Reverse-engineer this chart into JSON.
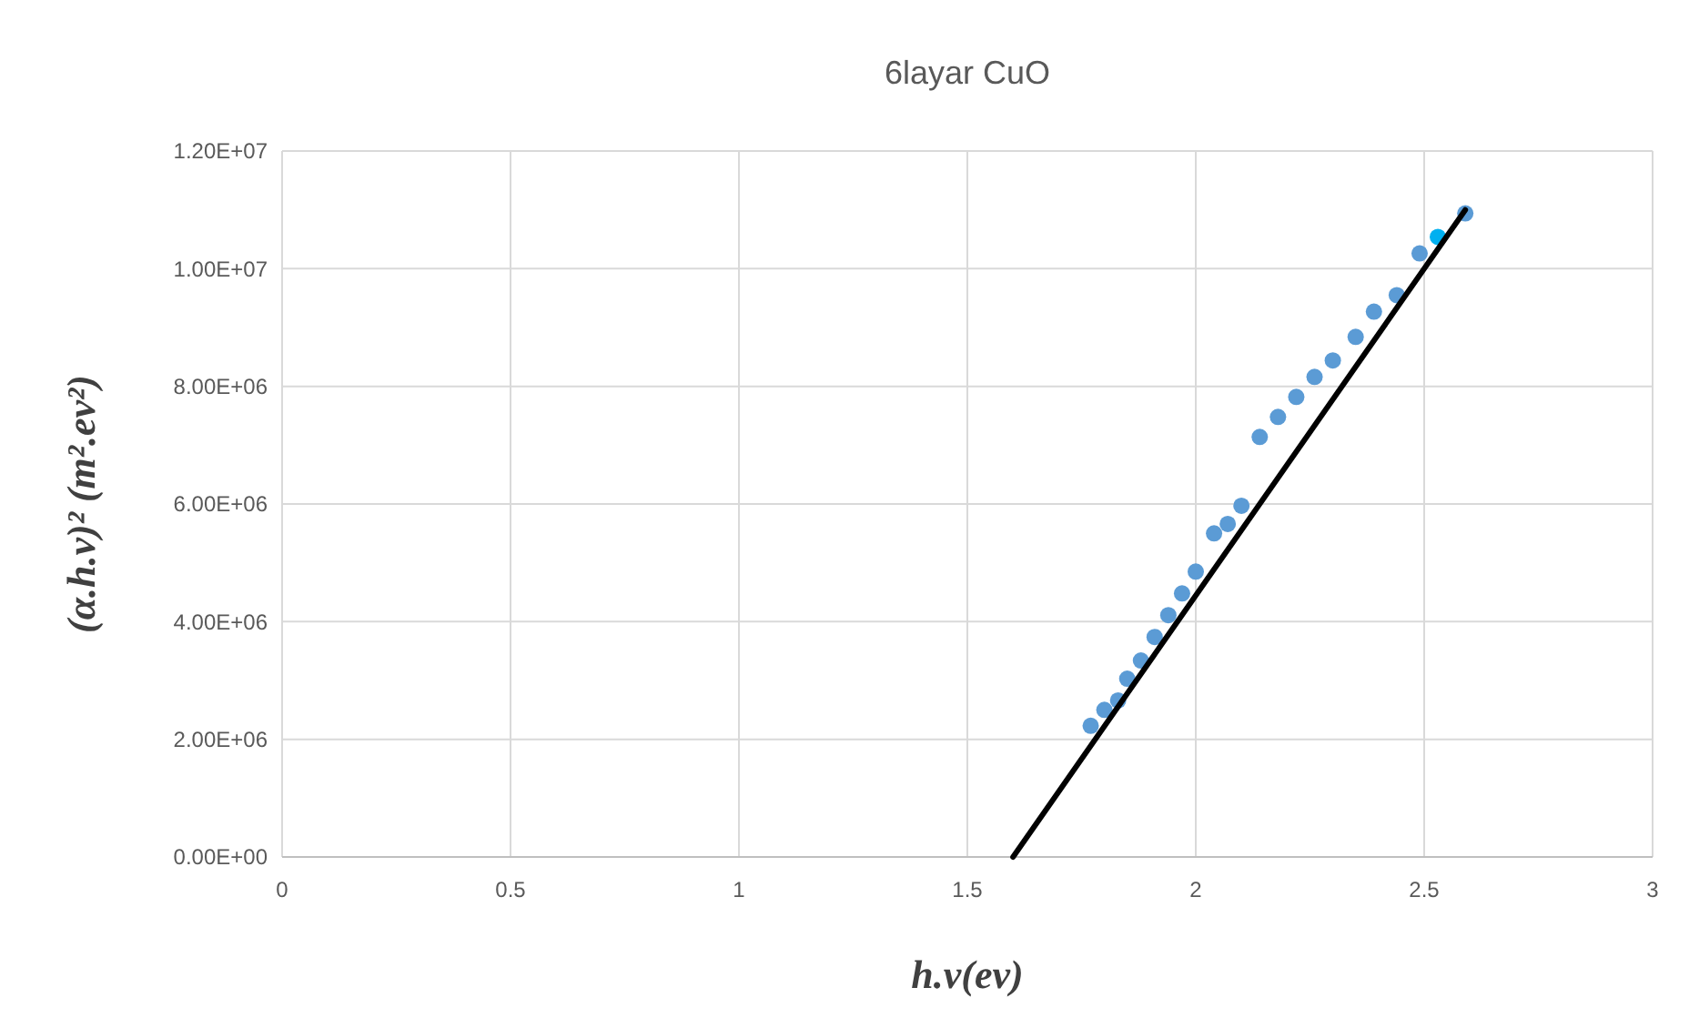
{
  "chart_data": {
    "type": "scatter",
    "title": "6layar CuO",
    "xlabel": "h.v(ev)",
    "ylabel": "(α.h.v)² (m².ev²)",
    "xlim": [
      0,
      3
    ],
    "xticks": [
      0,
      0.5,
      1,
      1.5,
      2,
      2.5,
      3
    ],
    "ylim": [
      0,
      12000000
    ],
    "yticks": [
      {
        "value": 0,
        "label": "0.00E+00"
      },
      {
        "value": 2000000,
        "label": "2.00E+06"
      },
      {
        "value": 4000000,
        "label": "4.00E+06"
      },
      {
        "value": 6000000,
        "label": "6.00E+06"
      },
      {
        "value": 8000000,
        "label": "8.00E+06"
      },
      {
        "value": 10000000,
        "label": "1.00E+07"
      },
      {
        "value": 12000000,
        "label": "1.20E+07"
      }
    ],
    "grid": true,
    "series": [
      {
        "marker": "circle",
        "x": [
          1.77,
          1.8,
          1.83,
          1.85,
          1.88,
          1.91,
          1.94,
          1.97,
          2.0,
          2.04,
          2.07,
          2.1,
          2.14,
          2.18,
          2.22,
          2.26,
          2.3,
          2.35,
          2.39,
          2.44,
          2.49,
          2.53,
          2.59
        ],
        "values": [
          2230000,
          2500000,
          2660000,
          3030000,
          3340000,
          3740000,
          4110000,
          4480000,
          4850000,
          5500000,
          5660000,
          5970000,
          7140000,
          7480000,
          7820000,
          8160000,
          8440000,
          8840000,
          9270000,
          9550000,
          10260000,
          10540000,
          10940000
        ],
        "colors": [
          "#5b9bd5",
          "#5b9bd5",
          "#5b9bd5",
          "#5b9bd5",
          "#5b9bd5",
          "#5b9bd5",
          "#5b9bd5",
          "#5b9bd5",
          "#5b9bd5",
          "#5b9bd5",
          "#5b9bd5",
          "#5b9bd5",
          "#5b9bd5",
          "#5b9bd5",
          "#5b9bd5",
          "#5b9bd5",
          "#5b9bd5",
          "#5b9bd5",
          "#5b9bd5",
          "#5b9bd5",
          "#5b9bd5",
          "#00b0f0",
          "#5b9bd5"
        ]
      },
      {
        "type": "line",
        "color": "#000000",
        "line_style": "solid",
        "marker": "none",
        "x": [
          1.6,
          2.59
        ],
        "values": [
          0,
          11000000
        ]
      }
    ]
  }
}
